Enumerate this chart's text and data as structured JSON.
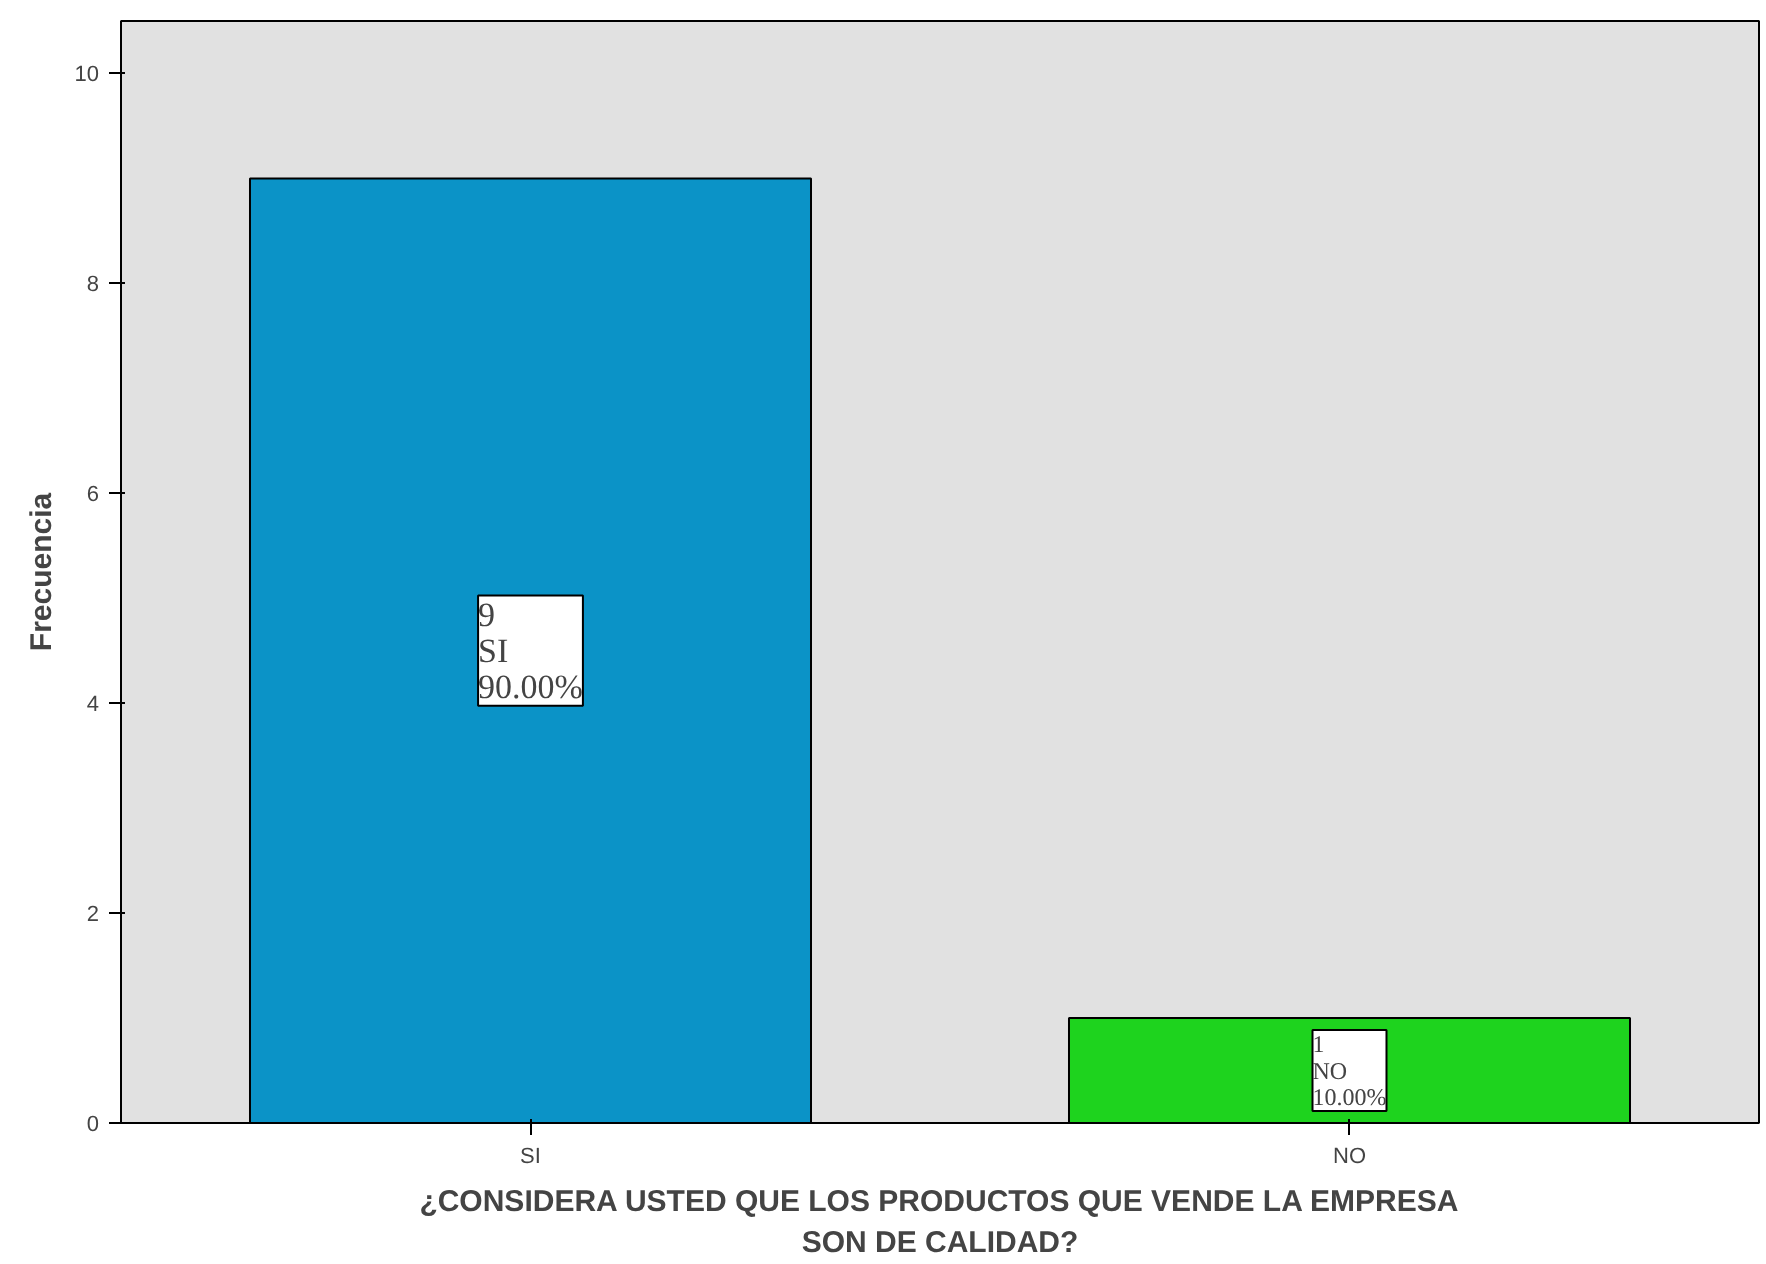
{
  "chart_data": {
    "type": "bar",
    "categories": [
      "SI",
      "NO"
    ],
    "values": [
      9,
      1
    ],
    "colors": [
      "#0b93c7",
      "#1ed31e"
    ],
    "value_labels": [
      "9\nSI\n90.00%",
      "1\nNO\n10.00%"
    ],
    "xlabel": "¿CONSIDERA USTED QUE LOS PRODUCTOS QUE VENDE LA EMPRESA\nSON DE CALIDAD?",
    "ylabel": "Frecuencia",
    "ylim": [
      0,
      10.5
    ],
    "yticks": [
      0,
      2,
      4,
      6,
      8,
      10
    ],
    "grid": false
  }
}
